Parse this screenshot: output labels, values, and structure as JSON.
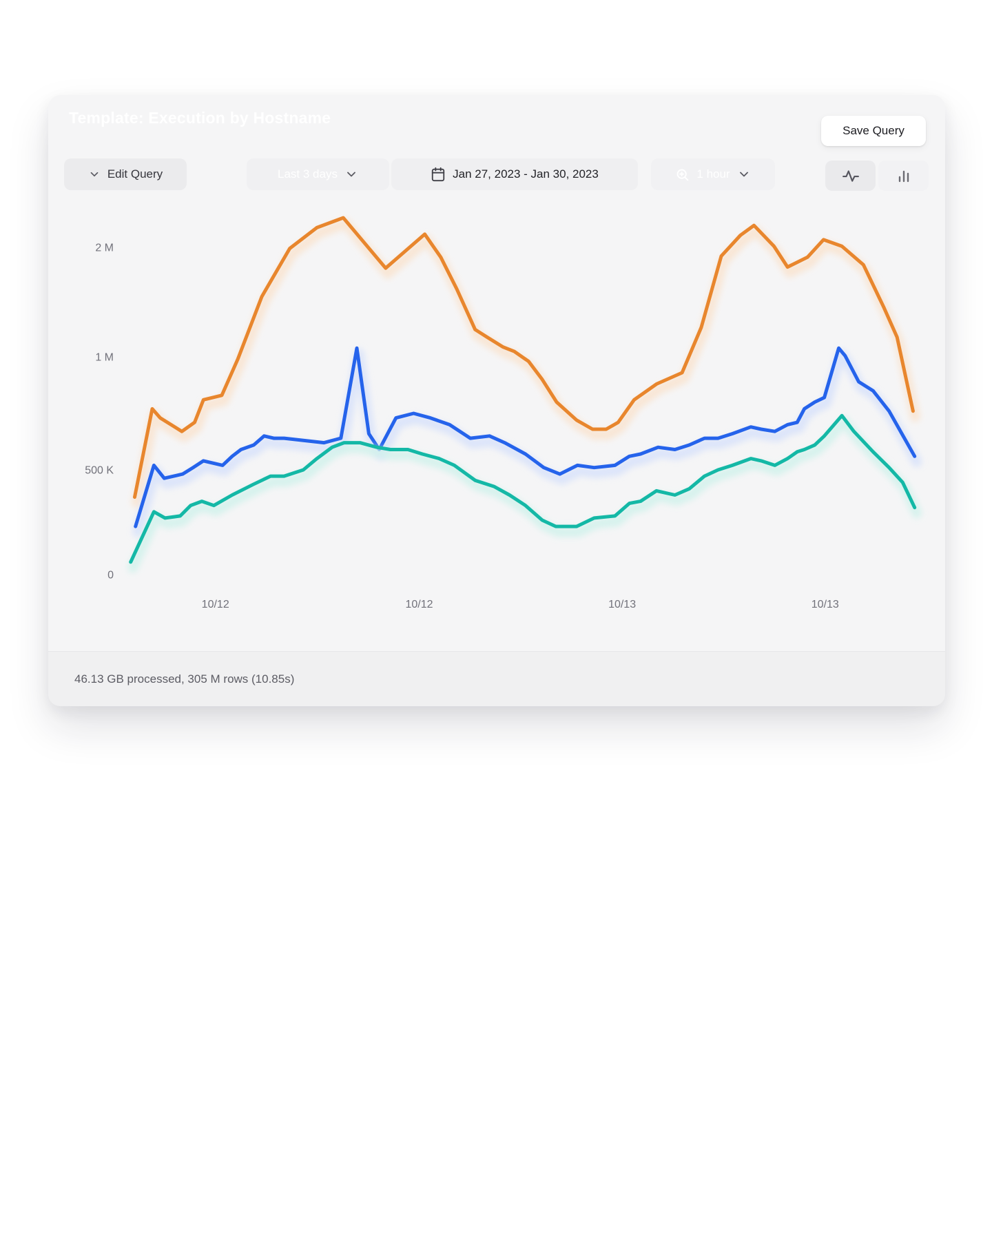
{
  "card": {
    "title": "Template: Execution by Hostname",
    "save_button": "Save Query",
    "toolbar": {
      "edit_query": "Edit Query",
      "time_range": "Last 3 days",
      "date_range": "Jan 27, 2023 - Jan 30, 2023",
      "interval": "1 hour"
    },
    "footer": "46.13 GB processed, 305 M rows (10.85s)"
  },
  "icons": {
    "edit_query": "chevron-down",
    "time_range": "chevron-down",
    "date_range": "calendar",
    "interval": [
      "zoom-in-magnifier",
      "chevron-down"
    ],
    "chart_mode_left": "activity-line",
    "chart_mode_right": "bar-chart"
  },
  "colors": {
    "card_background": "#f5f5f6",
    "orange": "#e8862d",
    "orange_glow": "#f9e4d0",
    "blue": "#2563eb",
    "blue_glow": "#d8e2fa",
    "teal": "#14b8a6",
    "teal_glow": "#d2f2ec"
  },
  "chart_data": {
    "type": "line",
    "title": "Template: Execution by Hostname",
    "x_tick_labels": [
      "10/12",
      "10/12",
      "10/13",
      "10/13"
    ],
    "y_tick_labels": [
      "0",
      "500 K",
      "1 M",
      "2 M"
    ],
    "y_tick_values": [
      0,
      500000,
      1000000,
      2000000
    ],
    "y_scale": "non-linear, ticks 0 / 500K / 1M / 2M evenly spaced",
    "grid": "off",
    "legend": "none",
    "points_format": "[time_fraction_of_x_axis, value_in_millions]",
    "series": [
      {
        "name": "series-orange",
        "color": "#e8862d",
        "glow": "#f9e4d0",
        "points": [
          [
            0.022,
            0.37
          ],
          [
            0.044,
            0.77
          ],
          [
            0.054,
            0.73
          ],
          [
            0.081,
            0.67
          ],
          [
            0.097,
            0.71
          ],
          [
            0.108,
            0.81
          ],
          [
            0.131,
            0.83
          ],
          [
            0.151,
            0.99
          ],
          [
            0.181,
            1.55
          ],
          [
            0.216,
            1.99
          ],
          [
            0.25,
            2.18
          ],
          [
            0.283,
            2.27
          ],
          [
            0.336,
            1.81
          ],
          [
            0.385,
            2.12
          ],
          [
            0.405,
            1.91
          ],
          [
            0.425,
            1.62
          ],
          [
            0.448,
            1.25
          ],
          [
            0.463,
            1.18
          ],
          [
            0.483,
            1.09
          ],
          [
            0.497,
            1.05
          ],
          [
            0.515,
            0.98
          ],
          [
            0.532,
            0.9
          ],
          [
            0.55,
            0.8
          ],
          [
            0.575,
            0.72
          ],
          [
            0.595,
            0.68
          ],
          [
            0.612,
            0.68
          ],
          [
            0.627,
            0.71
          ],
          [
            0.647,
            0.81
          ],
          [
            0.675,
            0.88
          ],
          [
            0.707,
            0.93
          ],
          [
            0.731,
            1.27
          ],
          [
            0.756,
            1.92
          ],
          [
            0.78,
            2.11
          ],
          [
            0.797,
            2.2
          ],
          [
            0.822,
            2.01
          ],
          [
            0.839,
            1.82
          ],
          [
            0.864,
            1.91
          ],
          [
            0.884,
            2.07
          ],
          [
            0.907,
            2.01
          ],
          [
            0.934,
            1.84
          ],
          [
            0.959,
            1.46
          ],
          [
            0.976,
            1.18
          ],
          [
            0.996,
            0.76
          ]
        ]
      },
      {
        "name": "series-blue",
        "color": "#2563eb",
        "glow": "#d8e2fa",
        "points": [
          [
            0.023,
            0.23
          ],
          [
            0.046,
            0.52
          ],
          [
            0.059,
            0.46
          ],
          [
            0.082,
            0.48
          ],
          [
            0.095,
            0.51
          ],
          [
            0.108,
            0.54
          ],
          [
            0.132,
            0.52
          ],
          [
            0.144,
            0.56
          ],
          [
            0.155,
            0.59
          ],
          [
            0.171,
            0.61
          ],
          [
            0.184,
            0.65
          ],
          [
            0.196,
            0.64
          ],
          [
            0.209,
            0.64
          ],
          [
            0.259,
            0.62
          ],
          [
            0.28,
            0.64
          ],
          [
            0.3,
            1.08
          ],
          [
            0.315,
            0.66
          ],
          [
            0.328,
            0.59
          ],
          [
            0.349,
            0.73
          ],
          [
            0.371,
            0.75
          ],
          [
            0.392,
            0.73
          ],
          [
            0.416,
            0.7
          ],
          [
            0.442,
            0.64
          ],
          [
            0.466,
            0.65
          ],
          [
            0.485,
            0.62
          ],
          [
            0.511,
            0.57
          ],
          [
            0.534,
            0.51
          ],
          [
            0.554,
            0.48
          ],
          [
            0.576,
            0.52
          ],
          [
            0.597,
            0.51
          ],
          [
            0.623,
            0.52
          ],
          [
            0.641,
            0.56
          ],
          [
            0.655,
            0.57
          ],
          [
            0.677,
            0.6
          ],
          [
            0.698,
            0.59
          ],
          [
            0.716,
            0.61
          ],
          [
            0.735,
            0.64
          ],
          [
            0.752,
            0.64
          ],
          [
            0.77,
            0.66
          ],
          [
            0.793,
            0.69
          ],
          [
            0.806,
            0.68
          ],
          [
            0.823,
            0.67
          ],
          [
            0.839,
            0.7
          ],
          [
            0.851,
            0.71
          ],
          [
            0.86,
            0.77
          ],
          [
            0.873,
            0.8
          ],
          [
            0.885,
            0.82
          ],
          [
            0.903,
            1.08
          ],
          [
            0.911,
            1.01
          ],
          [
            0.928,
            0.89
          ],
          [
            0.946,
            0.85
          ],
          [
            0.966,
            0.76
          ],
          [
            0.998,
            0.56
          ]
        ]
      },
      {
        "name": "series-teal",
        "color": "#14b8a6",
        "glow": "#d2f2ec",
        "points": [
          [
            0.017,
            0.06
          ],
          [
            0.046,
            0.3
          ],
          [
            0.06,
            0.27
          ],
          [
            0.079,
            0.28
          ],
          [
            0.092,
            0.33
          ],
          [
            0.106,
            0.35
          ],
          [
            0.121,
            0.33
          ],
          [
            0.144,
            0.38
          ],
          [
            0.17,
            0.43
          ],
          [
            0.192,
            0.47
          ],
          [
            0.209,
            0.47
          ],
          [
            0.233,
            0.5
          ],
          [
            0.25,
            0.55
          ],
          [
            0.269,
            0.6
          ],
          [
            0.284,
            0.62
          ],
          [
            0.304,
            0.62
          ],
          [
            0.325,
            0.6
          ],
          [
            0.342,
            0.59
          ],
          [
            0.364,
            0.59
          ],
          [
            0.382,
            0.57
          ],
          [
            0.403,
            0.55
          ],
          [
            0.422,
            0.52
          ],
          [
            0.448,
            0.45
          ],
          [
            0.472,
            0.42
          ],
          [
            0.491,
            0.38
          ],
          [
            0.511,
            0.33
          ],
          [
            0.532,
            0.26
          ],
          [
            0.549,
            0.23
          ],
          [
            0.575,
            0.23
          ],
          [
            0.597,
            0.27
          ],
          [
            0.623,
            0.28
          ],
          [
            0.641,
            0.34
          ],
          [
            0.655,
            0.35
          ],
          [
            0.675,
            0.4
          ],
          [
            0.698,
            0.38
          ],
          [
            0.716,
            0.41
          ],
          [
            0.735,
            0.47
          ],
          [
            0.752,
            0.5
          ],
          [
            0.77,
            0.52
          ],
          [
            0.793,
            0.55
          ],
          [
            0.806,
            0.54
          ],
          [
            0.823,
            0.52
          ],
          [
            0.839,
            0.55
          ],
          [
            0.851,
            0.58
          ],
          [
            0.86,
            0.59
          ],
          [
            0.873,
            0.61
          ],
          [
            0.885,
            0.65
          ],
          [
            0.907,
            0.74
          ],
          [
            0.922,
            0.67
          ],
          [
            0.946,
            0.58
          ],
          [
            0.966,
            0.51
          ],
          [
            0.983,
            0.44
          ],
          [
            0.998,
            0.32
          ]
        ]
      }
    ]
  }
}
